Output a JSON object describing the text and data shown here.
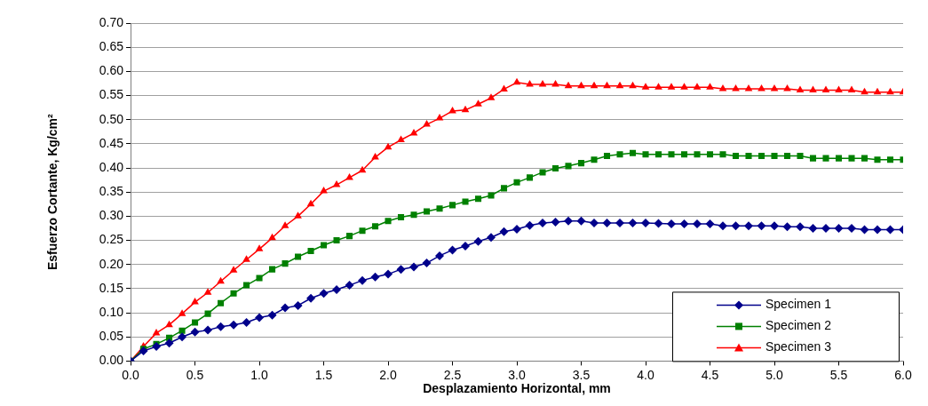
{
  "chart_data": {
    "type": "line",
    "xlabel": "Desplazamiento Horizontal, mm",
    "ylabel": "Esfuerzo Cortante, Kg/cm²",
    "x": [
      0,
      0.1,
      0.2,
      0.3,
      0.4,
      0.5,
      0.6,
      0.7,
      0.8,
      0.9,
      1.0,
      1.1,
      1.2,
      1.3,
      1.4,
      1.5,
      1.6,
      1.7,
      1.8,
      1.9,
      2.0,
      2.1,
      2.2,
      2.3,
      2.4,
      2.5,
      2.6,
      2.7,
      2.8,
      2.9,
      3.0,
      3.1,
      3.2,
      3.3,
      3.4,
      3.5,
      3.6,
      3.7,
      3.8,
      3.9,
      4.0,
      4.1,
      4.2,
      4.3,
      4.4,
      4.5,
      4.6,
      4.7,
      4.8,
      4.9,
      5.0,
      5.1,
      5.2,
      5.3,
      5.4,
      5.5,
      5.6,
      5.7,
      5.8,
      5.9,
      6.0
    ],
    "series": [
      {
        "name": "Specimen 1",
        "color": "#00008b",
        "marker": "diamond",
        "values": [
          0,
          0.021,
          0.03,
          0.037,
          0.05,
          0.06,
          0.064,
          0.071,
          0.075,
          0.08,
          0.09,
          0.095,
          0.11,
          0.115,
          0.13,
          0.14,
          0.148,
          0.157,
          0.167,
          0.174,
          0.18,
          0.19,
          0.195,
          0.203,
          0.218,
          0.23,
          0.238,
          0.248,
          0.256,
          0.268,
          0.273,
          0.281,
          0.286,
          0.288,
          0.29,
          0.29,
          0.286,
          0.286,
          0.286,
          0.286,
          0.286,
          0.285,
          0.284,
          0.284,
          0.284,
          0.284,
          0.28,
          0.28,
          0.28,
          0.28,
          0.28,
          0.278,
          0.278,
          0.275,
          0.275,
          0.275,
          0.275,
          0.272,
          0.272,
          0.272,
          0.272
        ]
      },
      {
        "name": "Specimen 2",
        "color": "#008000",
        "marker": "square",
        "values": [
          0,
          0.025,
          0.035,
          0.048,
          0.063,
          0.08,
          0.098,
          0.12,
          0.14,
          0.157,
          0.172,
          0.19,
          0.202,
          0.216,
          0.228,
          0.24,
          0.25,
          0.259,
          0.27,
          0.279,
          0.29,
          0.298,
          0.303,
          0.31,
          0.316,
          0.323,
          0.33,
          0.336,
          0.343,
          0.358,
          0.37,
          0.38,
          0.391,
          0.399,
          0.404,
          0.41,
          0.417,
          0.425,
          0.428,
          0.431,
          0.428,
          0.428,
          0.428,
          0.428,
          0.428,
          0.428,
          0.428,
          0.425,
          0.425,
          0.425,
          0.425,
          0.425,
          0.425,
          0.42,
          0.42,
          0.42,
          0.42,
          0.42,
          0.417,
          0.417,
          0.417
        ]
      },
      {
        "name": "Specimen 3",
        "color": "#ff0000",
        "marker": "triangle",
        "values": [
          0,
          0.03,
          0.058,
          0.075,
          0.098,
          0.122,
          0.142,
          0.165,
          0.188,
          0.21,
          0.232,
          0.255,
          0.28,
          0.3,
          0.325,
          0.352,
          0.365,
          0.38,
          0.395,
          0.422,
          0.443,
          0.458,
          0.472,
          0.49,
          0.503,
          0.518,
          0.52,
          0.532,
          0.545,
          0.563,
          0.577,
          0.573,
          0.573,
          0.573,
          0.57,
          0.57,
          0.57,
          0.57,
          0.57,
          0.57,
          0.567,
          0.567,
          0.567,
          0.567,
          0.567,
          0.567,
          0.564,
          0.564,
          0.564,
          0.564,
          0.564,
          0.564,
          0.561,
          0.561,
          0.561,
          0.561,
          0.561,
          0.557,
          0.557,
          0.557,
          0.557
        ]
      }
    ],
    "xlim": [
      0,
      6
    ],
    "xticks": [
      {
        "value": 0,
        "label": "0.0"
      },
      {
        "value": 0.5,
        "label": "0.5"
      },
      {
        "value": 1,
        "label": "1.0"
      },
      {
        "value": 1.5,
        "label": "1.5"
      },
      {
        "value": 2,
        "label": "2.0"
      },
      {
        "value": 2.5,
        "label": "2.5"
      },
      {
        "value": 3,
        "label": "3.0"
      },
      {
        "value": 3.5,
        "label": "3.5"
      },
      {
        "value": 4,
        "label": "4.0"
      },
      {
        "value": 4.5,
        "label": "4.5"
      },
      {
        "value": 5,
        "label": "5.0"
      },
      {
        "value": 5.5,
        "label": "5.5"
      },
      {
        "value": 6,
        "label": "6.0"
      }
    ],
    "ylim": [
      0,
      0.7
    ],
    "yticks": [
      {
        "value": 0,
        "label": "0.00"
      },
      {
        "value": 0.05,
        "label": "0.05"
      },
      {
        "value": 0.1,
        "label": "0.10"
      },
      {
        "value": 0.15,
        "label": "0.15"
      },
      {
        "value": 0.2,
        "label": "0.20"
      },
      {
        "value": 0.25,
        "label": "0.25"
      },
      {
        "value": 0.3,
        "label": "0.30"
      },
      {
        "value": 0.35,
        "label": "0.35"
      },
      {
        "value": 0.4,
        "label": "0.40"
      },
      {
        "value": 0.45,
        "label": "0.45"
      },
      {
        "value": 0.5,
        "label": "0.50"
      },
      {
        "value": 0.55,
        "label": "0.55"
      },
      {
        "value": 0.6,
        "label": "0.60"
      },
      {
        "value": 0.65,
        "label": "0.65"
      },
      {
        "value": 0.7,
        "label": "0.70"
      }
    ],
    "grid": "y",
    "legend": "bottom right",
    "line_style": "solid"
  }
}
